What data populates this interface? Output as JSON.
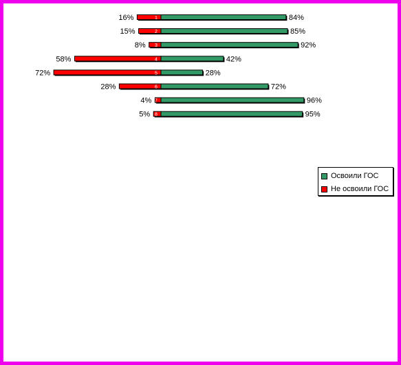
{
  "chart_data": {
    "type": "bar",
    "orientation": "horizontal-diverging",
    "categories": [
      "1",
      "2",
      "3",
      "4",
      "5",
      "6",
      "7",
      "8"
    ],
    "series": [
      {
        "name": "Освоили ГОС",
        "color": "#339966",
        "values": [
          84,
          85,
          92,
          42,
          28,
          72,
          96,
          95
        ]
      },
      {
        "name": "Не освоили ГОС",
        "color": "#ff0000",
        "values": [
          16,
          15,
          8,
          58,
          72,
          28,
          4,
          5
        ]
      }
    ],
    "value_suffix": "%",
    "title": "",
    "xlabel": "",
    "ylabel": "",
    "xlim": [
      -100,
      100
    ],
    "grid": false,
    "legend_position": "right"
  },
  "colors": {
    "frame": "#ee00ee"
  }
}
